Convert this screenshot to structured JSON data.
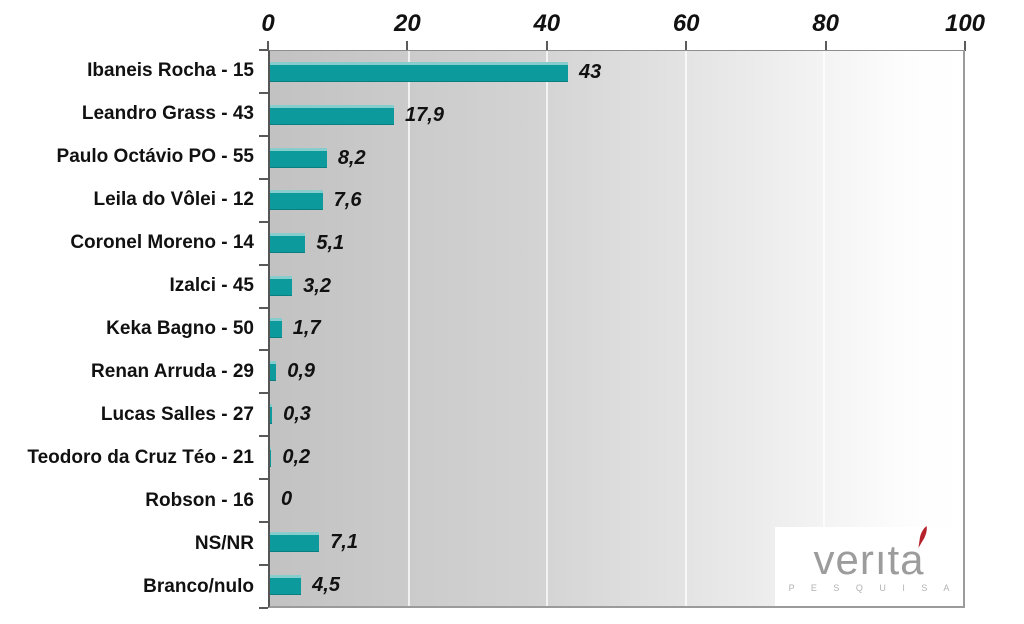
{
  "chart_data": {
    "type": "bar",
    "orientation": "horizontal",
    "title": "",
    "xlabel": "",
    "ylabel": "",
    "categories": [
      "Ibaneis Rocha - 15",
      "Leandro Grass - 43",
      "Paulo Octávio PO - 55",
      "Leila do Vôlei - 12",
      "Coronel Moreno - 14",
      "Izalci - 45",
      "Keka Bagno - 50",
      "Renan Arruda - 29",
      "Lucas Salles - 27",
      "Teodoro da Cruz Téo - 21",
      "Robson - 16",
      "NS/NR",
      "Branco/nulo"
    ],
    "values": [
      43,
      17.9,
      8.2,
      7.6,
      5.1,
      3.2,
      1.7,
      0.9,
      0.3,
      0.2,
      0,
      7.1,
      4.5
    ],
    "value_labels": [
      "43",
      "17,9",
      "8,2",
      "7,6",
      "5,1",
      "3,2",
      "1,7",
      "0,9",
      "0,3",
      "0,2",
      "0",
      "7,1",
      "4,5"
    ],
    "x_ticks": [
      0,
      20,
      40,
      60,
      80,
      100
    ],
    "xlim": [
      0,
      100
    ],
    "grid": "vertical gridlines at x ticks",
    "legend": "none",
    "axis_position": "x axis on top, category axis on left",
    "bar_color": "#0d9a9c",
    "plot_background": [
      "#c2c2c2",
      "#ffffff"
    ]
  },
  "logo": {
    "brand": "veritá",
    "brand_display_base": "verıt",
    "brand_display_last": "a",
    "tagline": "P E S Q U I S A",
    "text_color": "#9c9c9c",
    "accent_color": "#b5222b"
  }
}
